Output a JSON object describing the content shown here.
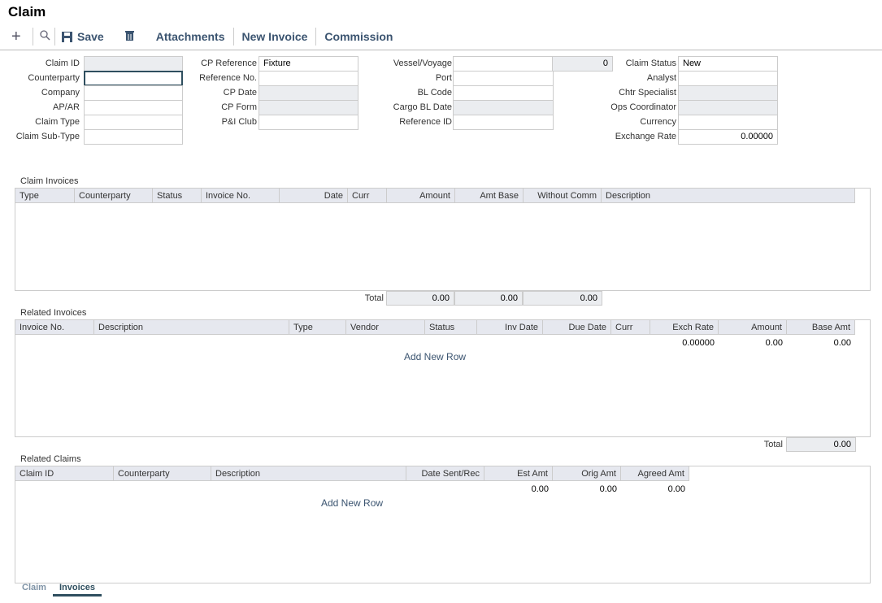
{
  "title": "Claim",
  "toolbar": {
    "save": "Save",
    "attachments": "Attachments",
    "new_invoice": "New Invoice",
    "commission": "Commission"
  },
  "form": {
    "col1": [
      {
        "label": "Claim ID",
        "value": "",
        "ro": true
      },
      {
        "label": "Counterparty",
        "value": "",
        "dropdown": true
      },
      {
        "label": "Company",
        "value": ""
      },
      {
        "label": "AP/AR",
        "value": ""
      },
      {
        "label": "Claim Type",
        "value": ""
      },
      {
        "label": "Claim Sub-Type",
        "value": ""
      }
    ],
    "col2": [
      {
        "label": "CP Reference",
        "value": "Fixture"
      },
      {
        "label": "Reference No.",
        "value": ""
      },
      {
        "label": "CP Date",
        "value": "",
        "ro": true
      },
      {
        "label": "CP Form",
        "value": "",
        "ro": true
      },
      {
        "label": "P&I Club",
        "value": ""
      }
    ],
    "col3": [
      {
        "label": "Vessel/Voyage",
        "value": ""
      },
      {
        "label": "Port",
        "value": ""
      },
      {
        "label": "BL Code",
        "value": ""
      },
      {
        "label": "Cargo BL Date",
        "value": "",
        "ro": true
      },
      {
        "label": "Reference ID",
        "value": ""
      }
    ],
    "voyage_no": "0",
    "col4": [
      {
        "label": "Claim Status",
        "value": "New"
      },
      {
        "label": "Analyst",
        "value": ""
      },
      {
        "label": "Chtr Specialist",
        "value": "",
        "ro": true
      },
      {
        "label": "Ops Coordinator",
        "value": "",
        "ro": true
      },
      {
        "label": "Currency",
        "value": ""
      },
      {
        "label": "Exchange Rate",
        "value": "0.00000",
        "num": true
      }
    ]
  },
  "claim_invoices": {
    "label": "Claim Invoices",
    "columns": [
      "Type",
      "Counterparty",
      "Status",
      "Invoice No.",
      "Date",
      "Curr",
      "Amount",
      "Amt Base",
      "Without Comm",
      "Description"
    ],
    "total_label": "Total",
    "totals": [
      "0.00",
      "0.00",
      "0.00"
    ]
  },
  "related_invoices": {
    "label": "Related Invoices",
    "columns": [
      "Invoice No.",
      "Description",
      "Type",
      "Vendor",
      "Status",
      "Inv Date",
      "Due Date",
      "Curr",
      "Exch Rate",
      "Amount",
      "Base Amt"
    ],
    "row": [
      "0.00000",
      "0.00",
      "0.00"
    ],
    "add_row": "Add New Row",
    "total_label": "Total",
    "total": "0.00"
  },
  "related_claims": {
    "label": "Related Claims",
    "columns": [
      "Claim ID",
      "Counterparty",
      "Description",
      "Date Sent/Rec",
      "Est Amt",
      "Orig Amt",
      "Agreed Amt"
    ],
    "row": [
      "0.00",
      "0.00",
      "0.00"
    ],
    "add_row": "Add New Row"
  },
  "tabs": [
    {
      "label": "Claim",
      "active": false
    },
    {
      "label": "Invoices",
      "active": true
    }
  ]
}
